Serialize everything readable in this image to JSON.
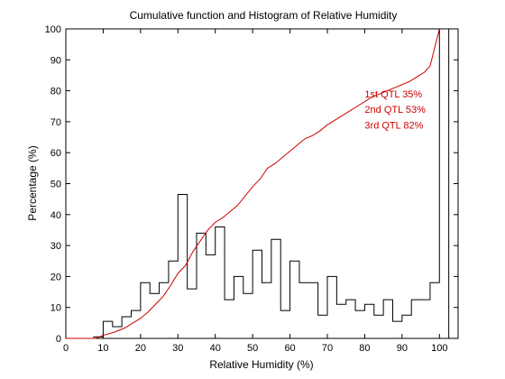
{
  "chart_data": {
    "type": "bar",
    "title": "Cumulative function and Histogram of Relative Humidity",
    "xlabel": "Relative Humidity (%)",
    "ylabel": "Percentage (%)",
    "xlim": [
      0,
      105
    ],
    "ylim": [
      0,
      100
    ],
    "xticks": [
      0,
      10,
      20,
      30,
      40,
      50,
      60,
      70,
      80,
      90,
      100
    ],
    "yticks": [
      0,
      10,
      20,
      30,
      40,
      50,
      60,
      70,
      80,
      90,
      100
    ],
    "grid": false,
    "colors": {
      "histogram": "#000000",
      "cumulative": "#cc0000",
      "annotation": "#cc0000"
    },
    "histogram": {
      "bin_edges": [
        7.5,
        10,
        12.5,
        15,
        17.5,
        20,
        22.5,
        25,
        27.5,
        30,
        32.5,
        35,
        37.5,
        40,
        42.5,
        45,
        47.5,
        50,
        52.5,
        55,
        57.5,
        60,
        62.5,
        65,
        67.5,
        70,
        72.5,
        75,
        77.5,
        80,
        82.5,
        85,
        87.5,
        90,
        92.5,
        95,
        97.5,
        100,
        102.5
      ],
      "values": [
        0.5,
        5.5,
        3.8,
        7,
        9,
        18,
        14.5,
        18,
        25,
        46.5,
        16,
        34,
        27,
        36,
        12.5,
        20,
        14.5,
        28.5,
        18,
        32,
        9,
        25,
        18,
        18,
        7.5,
        20,
        11,
        12.5,
        9,
        11,
        7.5,
        12.5,
        5.5,
        7.5,
        12.5,
        12.5,
        18,
        100
      ]
    },
    "cumulative": {
      "name": "",
      "x": [
        0,
        8,
        10,
        13,
        16,
        18,
        20,
        22,
        24,
        26,
        28,
        30,
        32,
        34,
        36,
        38,
        40,
        42,
        44,
        46,
        48,
        50,
        52,
        54,
        56,
        58,
        60,
        62,
        64,
        66,
        68,
        70,
        72,
        74,
        76,
        78,
        80,
        82,
        84,
        86,
        88,
        90,
        92,
        94,
        96,
        97.5,
        100
      ],
      "y": [
        0,
        0,
        1,
        2,
        3.5,
        5,
        6.5,
        8.5,
        11,
        13.5,
        17,
        21,
        23.5,
        28,
        31.5,
        35,
        37.5,
        39,
        41,
        43,
        46,
        49,
        51.5,
        55,
        56.5,
        58.5,
        60.5,
        62.5,
        64.5,
        65.5,
        67,
        69,
        70.5,
        72,
        73.5,
        75,
        76.5,
        78,
        79,
        80,
        81,
        82,
        83,
        84.5,
        86,
        88,
        100
      ]
    },
    "annotations": [
      {
        "text": "1st QTL  35%",
        "x": 80,
        "y": 79
      },
      {
        "text": "2nd QTL  53%",
        "x": 80,
        "y": 74
      },
      {
        "text": "3rd QTL  82%",
        "x": 80,
        "y": 69
      }
    ]
  }
}
